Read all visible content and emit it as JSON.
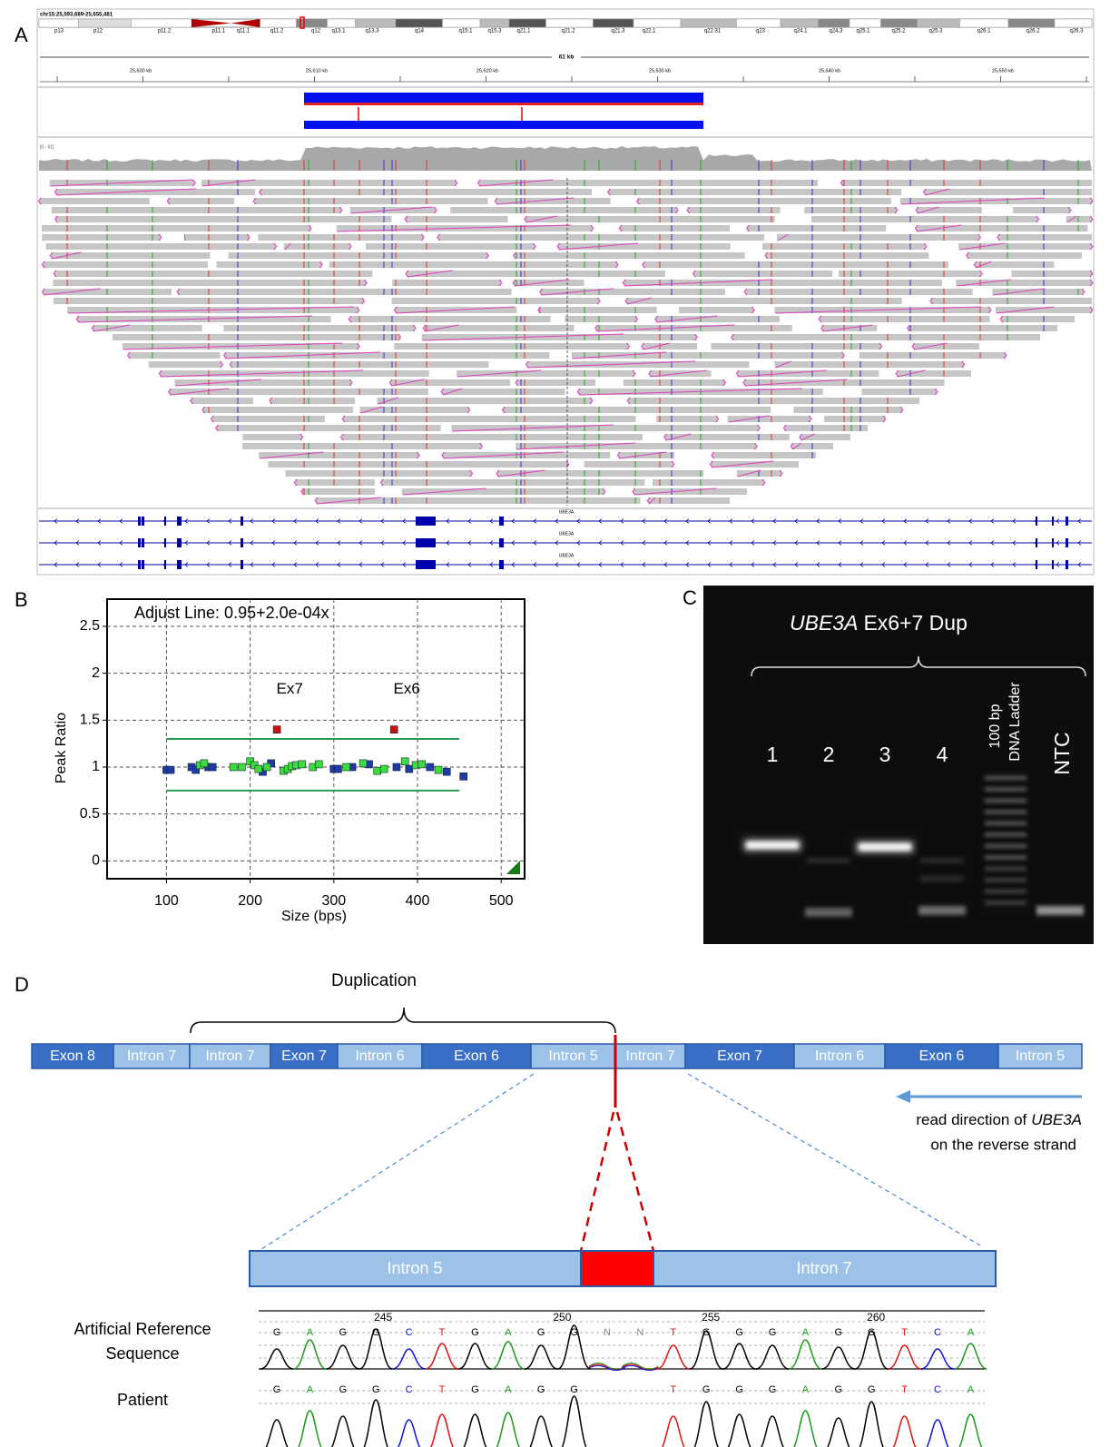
{
  "panel_labels": [
    "A",
    "B",
    "C",
    "D"
  ],
  "panel_a": {
    "locus": "chr15:25,593,689-25,655,481",
    "cytobands": [
      "p13",
      "p12",
      "p11.2",
      "p11.1",
      "q11.1",
      "q11.2",
      "q12",
      "q13.1",
      "q13.3",
      "q14",
      "q15.1",
      "q15.3",
      "q21.1",
      "q21.2",
      "q21.3",
      "q22.1",
      "q22.31",
      "q23",
      "q24.1",
      "q24.3",
      "q25.1",
      "q25.2",
      "q25.3",
      "q26.1",
      "q26.2",
      "q26.3"
    ],
    "span": "61 kb",
    "ruler": [
      "25,600 kb",
      "25,610 kb",
      "25,620 kb",
      "25,630 kb",
      "25,640 kb",
      "25,650 kb"
    ],
    "coverage_range": "[0 - 61]",
    "gene_labels": [
      "UBE3A",
      "UBE3A",
      "UBE3A"
    ]
  },
  "chart_data": {
    "type": "scatter",
    "title": "Adjust Line: 0.95+2.0e-04x",
    "x_label": "Size (bps)",
    "y_label": "Peak Ratio",
    "xlim": [
      29,
      528
    ],
    "ylim": [
      -0.19,
      2.79
    ],
    "xticks": [
      100,
      200,
      300,
      400,
      500
    ],
    "yticks": [
      0,
      0.5,
      1,
      1.5,
      2,
      2.5
    ],
    "grid": true,
    "series": [
      {
        "color": "#1f3aa8",
        "x": [
          100,
          105,
          130,
          135,
          150,
          155,
          215,
          225,
          300,
          305,
          322,
          342,
          375,
          390,
          415,
          435,
          455
        ],
        "values": [
          0.97,
          0.97,
          1.0,
          0.97,
          1.0,
          1.0,
          0.95,
          1.04,
          0.98,
          0.98,
          1.0,
          1.03,
          1.0,
          0.98,
          1.0,
          0.95,
          0.9
        ]
      },
      {
        "color": "#3ddc3d",
        "x": [
          140,
          145,
          180,
          190,
          200,
          205,
          210,
          220,
          240,
          245,
          250,
          255,
          262,
          275,
          282,
          315,
          335,
          352,
          360,
          385,
          398,
          405,
          425
        ],
        "values": [
          1.02,
          1.04,
          1.0,
          1.0,
          1.06,
          1.02,
          0.98,
          1.0,
          0.96,
          0.98,
          1.01,
          1.02,
          1.03,
          1.0,
          1.03,
          1.0,
          1.04,
          0.96,
          0.98,
          1.06,
          1.02,
          1.03,
          0.97
        ]
      },
      {
        "color": "#cc1111",
        "x": [
          232,
          372
        ],
        "values": [
          1.4,
          1.4
        ]
      }
    ],
    "annotations": [
      "Ex7",
      "Ex6"
    ],
    "limit_lines": [
      {
        "color": "#2a9a55",
        "y": 1.3,
        "x": [
          100,
          450
        ]
      },
      {
        "color": "#2a9a55",
        "y": 0.75,
        "x": [
          100,
          450
        ]
      }
    ]
  },
  "panel_c": {
    "title_gene": "UBE3A",
    "title_rest": "Ex6+7 Dup",
    "lanes": [
      "1",
      "2",
      "3",
      "4"
    ],
    "ladder": [
      "100 bp",
      "DNA Ladder"
    ],
    "ntc": "NTC"
  },
  "panel_d": {
    "bracket_label": "Duplication",
    "segments": [
      {
        "label": "Exon 8",
        "kind": "exon"
      },
      {
        "label": "Intron 7",
        "kind": "intron"
      },
      {
        "label": "Intron 7",
        "kind": "intron"
      },
      {
        "label": "Exon 7",
        "kind": "exon"
      },
      {
        "label": "Intron 6",
        "kind": "intron"
      },
      {
        "label": "Exon 6",
        "kind": "exon"
      },
      {
        "label": "Intron 5",
        "kind": "intron"
      },
      {
        "label": "Intron 7",
        "kind": "intron"
      },
      {
        "label": "Exon 7",
        "kind": "exon"
      },
      {
        "label": "Intron 6",
        "kind": "intron"
      },
      {
        "label": "Exon 6",
        "kind": "exon"
      },
      {
        "label": "Intron 5",
        "kind": "intron"
      }
    ],
    "note": {
      "line1": "read direction of",
      "gene": "UBE3A",
      "line2": "on the reverse strand"
    },
    "zoom": [
      "Intron 5",
      "Intron 7"
    ],
    "reference_label": [
      "Artificial Reference",
      "Sequence"
    ],
    "patient_label": "Patient",
    "positions": [
      "245",
      "250",
      "255",
      "260"
    ],
    "reference": [
      "G",
      "A",
      "G",
      "G",
      "C",
      "T",
      "G",
      "A",
      "G",
      "G",
      "N",
      "N",
      "T",
      "G",
      "G",
      "G",
      "A",
      "G",
      "G",
      "T",
      "C",
      "A"
    ],
    "patient": [
      "G",
      "A",
      "G",
      "G",
      "C",
      "T",
      "G",
      "A",
      "G",
      "G",
      null,
      null,
      "T",
      "G",
      "G",
      "G",
      "A",
      "G",
      "G",
      "T",
      "C",
      "A"
    ]
  }
}
